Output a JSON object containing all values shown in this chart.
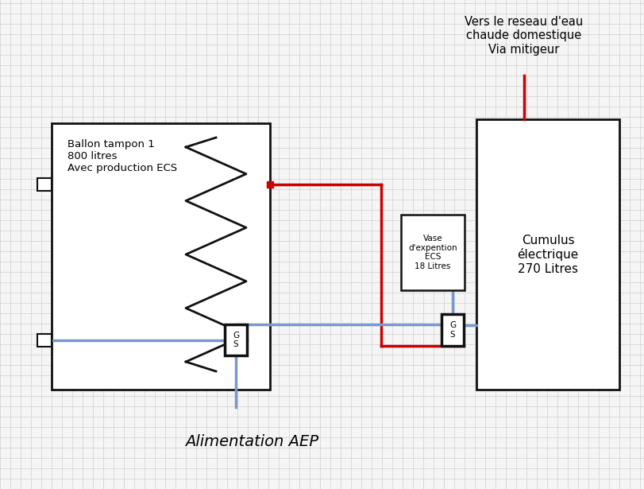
{
  "bg_color": "#f5f5f5",
  "grid_color": "#d0d0d0",
  "title_annotation": "Vers le reseau d'eau\nchaude domestique\nVia mitigeur",
  "ballon_label": "Ballon tampon 1\n800 litres\nAvec production ECS",
  "cumulus_label": "Cumulus\nélectrique\n270 Litres",
  "vase_label": "Vase\nd'expention\nECS\n18 Litres",
  "alimentation_label": "Alimentation AEP",
  "gs_label": "G\nS",
  "line_color_red": "#cc0000",
  "line_color_blue": "#7799cc",
  "line_color_black": "#111111",
  "box_fill": "#ffffff",
  "box_edge": "#111111",
  "figw": 8.11,
  "figh": 6.15,
  "dpi": 100
}
